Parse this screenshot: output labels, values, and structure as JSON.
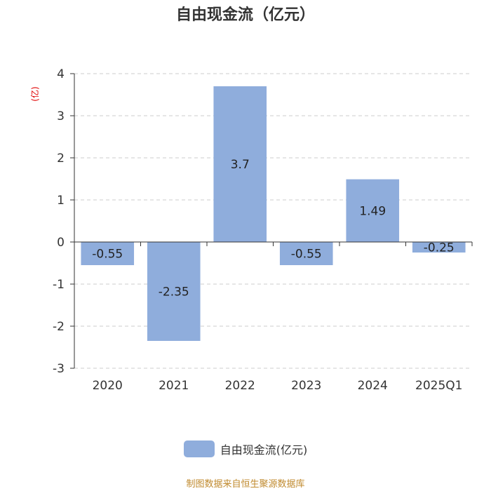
{
  "title": "自由现金流（亿元）",
  "unit_label": "(亿)",
  "legend_label": "自由现金流(亿元)",
  "source": "制图数据来自恒生聚源数据库",
  "colors": {
    "bar": "#8faddc",
    "axis": "#333333",
    "grid": "#cccccc",
    "unit": "#e00000",
    "source": "#c08a2e"
  },
  "chart_data": {
    "type": "bar",
    "title": "自由现金流（亿元）",
    "categories": [
      "2020",
      "2021",
      "2022",
      "2023",
      "2024",
      "2025Q1"
    ],
    "series": [
      {
        "name": "自由现金流(亿元)",
        "values": [
          -0.55,
          -2.35,
          3.7,
          -0.55,
          1.49,
          -0.25
        ]
      }
    ],
    "data_labels": [
      "-0.55",
      "-2.35",
      "3.7",
      "-0.55",
      "1.49",
      "-0.25"
    ],
    "ylabel": "(亿)",
    "ylim": [
      -3,
      4
    ],
    "yticks": [
      4,
      3,
      2,
      1,
      0,
      -1,
      -2,
      -3
    ],
    "grid": true,
    "legend_position": "bottom"
  }
}
